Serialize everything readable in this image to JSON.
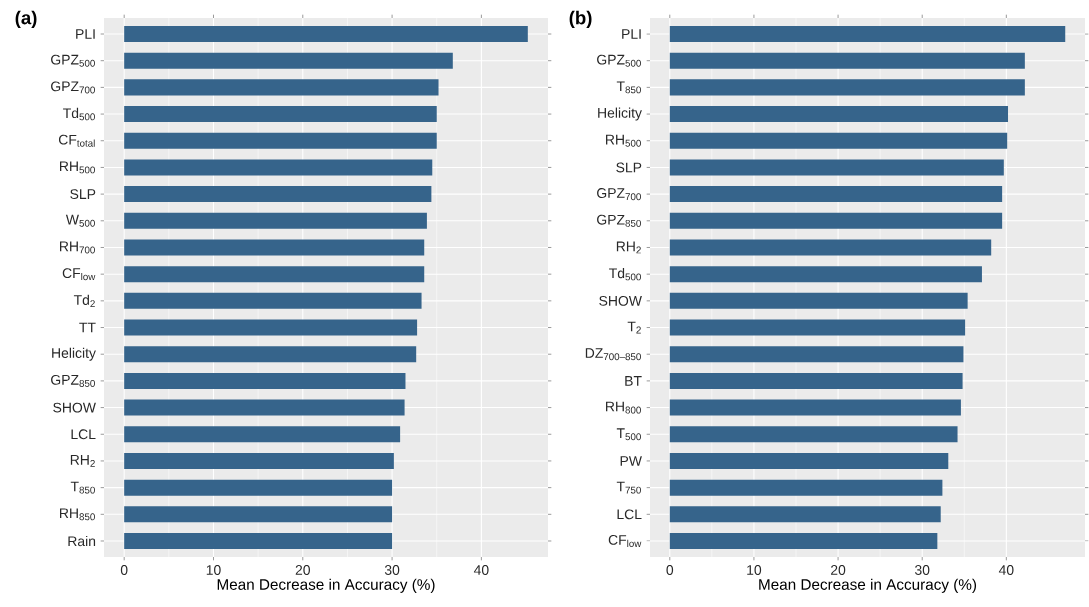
{
  "chart_data": [
    {
      "type": "bar",
      "orientation": "horizontal",
      "title": "(a)",
      "xlabel": "Mean Decrease in Accuracy (%)",
      "color": "#36648b",
      "grid": true,
      "xlim": [
        -2.26,
        47.46
      ],
      "xticks": [
        0,
        10,
        20,
        30,
        40
      ],
      "categories": [
        "PLI",
        "GPZ$_{500}$",
        "GPZ$_{700}$",
        "Td$_{500}$",
        "CF$_{total}$",
        "RH$_{500}$",
        "SLP",
        "W$_{500}$",
        "RH$_{700}$",
        "CF$_{low}$",
        "Td$_{2}$",
        "TT",
        "Helicity",
        "GPZ$_{850}$",
        "SHOW",
        "LCL",
        "RH$_{2}$",
        "T$_{850}$",
        "RH$_{850}$",
        "Rain"
      ],
      "values": [
        45.2,
        36.8,
        35.2,
        35.0,
        35.0,
        34.5,
        34.4,
        33.9,
        33.6,
        33.6,
        33.3,
        32.8,
        32.7,
        31.5,
        31.4,
        30.9,
        30.2,
        30.0,
        30.0,
        30.0
      ]
    },
    {
      "type": "bar",
      "orientation": "horizontal",
      "title": "(b)",
      "xlabel": "Mean Decrease in Accuracy (%)",
      "color": "#36648b",
      "grid": true,
      "xlim": [
        -2.35,
        49.35
      ],
      "xticks": [
        0,
        10,
        20,
        30,
        40
      ],
      "categories": [
        "PLI",
        "GPZ$_{500}$",
        "T$_{850}$",
        "Helicity",
        "RH$_{500}$",
        "SLP",
        "GPZ$_{700}$",
        "GPZ$_{850}$",
        "RH$_{2}$",
        "Td$_{500}$",
        "SHOW",
        "T$_{2}$",
        "DZ$_{700–850}$",
        "BT",
        "RH$_{800}$",
        "T$_{500}$",
        "PW",
        "T$_{750}$",
        "LCL",
        "CF$_{low}$"
      ],
      "values": [
        47.0,
        42.2,
        42.2,
        40.2,
        40.1,
        39.7,
        39.5,
        39.5,
        38.2,
        37.1,
        35.4,
        35.1,
        34.9,
        34.8,
        34.6,
        34.2,
        33.1,
        32.4,
        32.2,
        31.8
      ]
    }
  ]
}
